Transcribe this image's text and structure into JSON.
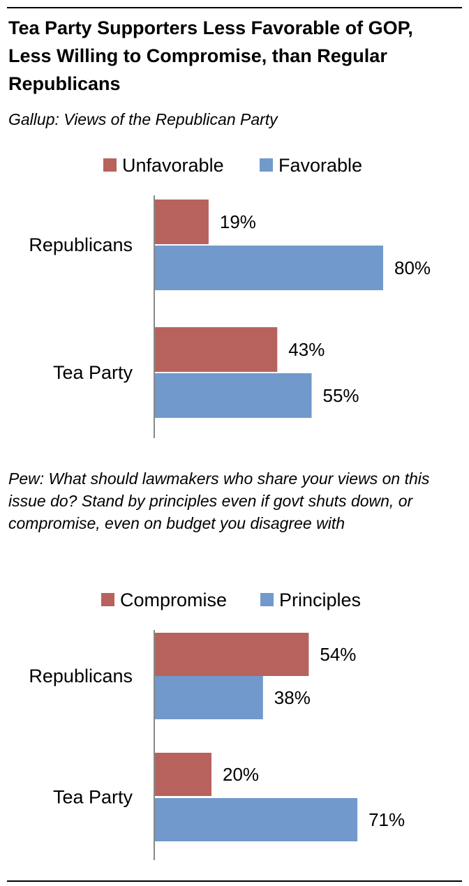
{
  "title": "Tea Party Supporters Less Favorable of GOP, Less Willing to Compromise, than Regular Republicans",
  "colors": {
    "red": "#b8625e",
    "blue": "#7199cb"
  },
  "chart_data": [
    {
      "type": "bar",
      "orientation": "horizontal",
      "subtitle": "Gallup: Views of the Republican Party",
      "categories": [
        "Republicans",
        "Tea Party"
      ],
      "series": [
        {
          "name": "Unfavorable",
          "color": "#b8625e",
          "values": [
            19,
            43
          ],
          "labels": [
            "19%",
            "43%"
          ]
        },
        {
          "name": "Favorable",
          "color": "#7199cb",
          "values": [
            80,
            55
          ],
          "labels": [
            "80%",
            "55%"
          ]
        }
      ],
      "xlim": [
        0,
        100
      ],
      "grid": false,
      "legend": "top"
    },
    {
      "type": "bar",
      "orientation": "horizontal",
      "subtitle": "Pew: What should lawmakers who share your views on this issue do? Stand by principles even if govt shuts down, or compromise, even on budget you disagree with",
      "categories": [
        "Republicans",
        "Tea Party"
      ],
      "series": [
        {
          "name": "Compromise",
          "color": "#b8625e",
          "values": [
            54,
            20
          ],
          "labels": [
            "54%",
            "20%"
          ]
        },
        {
          "name": "Principles",
          "color": "#7199cb",
          "values": [
            38,
            71
          ],
          "labels": [
            "38%",
            "71%"
          ]
        }
      ],
      "xlim": [
        0,
        100
      ],
      "grid": false,
      "legend": "top"
    }
  ]
}
